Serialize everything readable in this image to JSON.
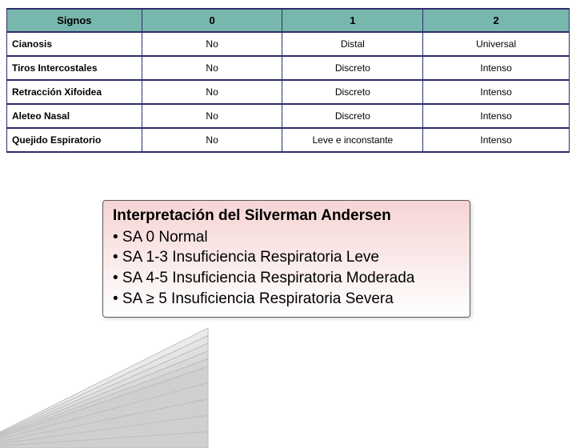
{
  "table": {
    "header_bg": "#78b7ad",
    "border_color": "#2b2e6a",
    "columns": [
      "Signos",
      "0",
      "1",
      "2"
    ],
    "rows": [
      {
        "label": "Cianosis",
        "c0": "No",
        "c1": "Distal",
        "c2": "Universal"
      },
      {
        "label": "Tiros Intercostales",
        "c0": "No",
        "c1": "Discreto",
        "c2": "Intenso"
      },
      {
        "label": "Retracción Xifoidea",
        "c0": "No",
        "c1": "Discreto",
        "c2": "Intenso"
      },
      {
        "label": "Aleteo Nasal",
        "c0": "No",
        "c1": "Discreto",
        "c2": "Intenso"
      },
      {
        "label": "Quejido Espiratorio",
        "c0": "No",
        "c1": "Leve e inconstante",
        "c2": "Intenso"
      }
    ]
  },
  "interp": {
    "bg_top": "#f6d4d4",
    "bg_bottom": "#ffffff",
    "title": "Interpretación del Silverman Andersen",
    "lines": [
      "• SA 0 Normal",
      "• SA 1-3 Insuficiencia Respiratoria Leve",
      "• SA 4-5 Insuficiencia Respiratoria Moderada",
      "• SA ≥ 5 Insuficiencia Respiratoria Severa"
    ]
  },
  "wedge": {
    "stroke": "#bdbdbd",
    "fill": "#d9d9d9",
    "stripe_count": 5
  }
}
